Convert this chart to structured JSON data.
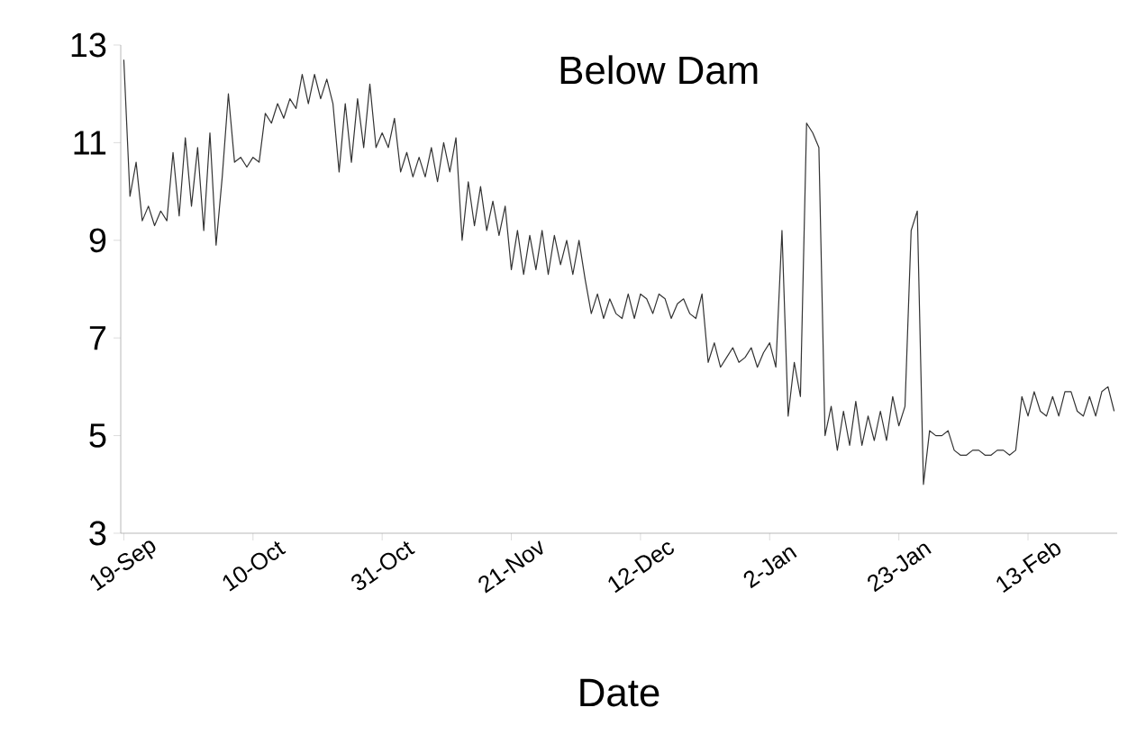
{
  "chart_data": {
    "type": "line",
    "title": "Below Dam",
    "xlabel": "Date",
    "color": "#333333",
    "marker": "none",
    "line_style": "solid",
    "categories": [
      "19-Sep",
      null,
      null,
      null,
      null,
      null,
      null,
      null,
      null,
      null,
      null,
      null,
      null,
      null,
      null,
      null,
      null,
      null,
      null,
      null,
      null,
      "10-Oct",
      null,
      null,
      null,
      null,
      null,
      null,
      null,
      null,
      null,
      null,
      null,
      null,
      null,
      null,
      null,
      null,
      null,
      null,
      null,
      null,
      "31-Oct",
      null,
      null,
      null,
      null,
      null,
      null,
      null,
      null,
      null,
      null,
      null,
      null,
      null,
      null,
      null,
      null,
      null,
      null,
      null,
      null,
      "21-Nov",
      null,
      null,
      null,
      null,
      null,
      null,
      null,
      null,
      null,
      null,
      null,
      null,
      null,
      null,
      null,
      null,
      null,
      null,
      null,
      null,
      "12-Dec",
      null,
      null,
      null,
      null,
      null,
      null,
      null,
      null,
      null,
      null,
      null,
      null,
      null,
      null,
      null,
      null,
      null,
      null,
      null,
      null,
      "2-Jan",
      null,
      null,
      null,
      null,
      null,
      null,
      null,
      null,
      null,
      null,
      null,
      null,
      null,
      null,
      null,
      null,
      null,
      null,
      null,
      null,
      "23-Jan",
      null,
      null,
      null,
      null,
      null,
      null,
      null,
      null,
      null,
      null,
      null,
      null,
      null,
      null,
      null,
      null,
      null,
      null,
      null,
      null,
      "13-Feb",
      null,
      null,
      null,
      null,
      null,
      null,
      null,
      null,
      null,
      null,
      null,
      null,
      null,
      null
    ],
    "values": [
      12.7,
      9.9,
      10.6,
      9.4,
      9.7,
      9.3,
      9.6,
      9.4,
      10.8,
      9.5,
      11.1,
      9.7,
      10.9,
      9.2,
      11.2,
      8.9,
      10.3,
      12.0,
      10.6,
      10.7,
      10.5,
      10.7,
      10.6,
      11.6,
      11.4,
      11.8,
      11.5,
      11.9,
      11.7,
      12.4,
      11.8,
      12.4,
      11.9,
      12.3,
      11.8,
      10.4,
      11.8,
      10.6,
      11.9,
      10.9,
      12.2,
      10.9,
      11.2,
      10.9,
      11.5,
      10.4,
      10.8,
      10.3,
      10.7,
      10.3,
      10.9,
      10.2,
      11.0,
      10.4,
      11.1,
      9.0,
      10.2,
      9.3,
      10.1,
      9.2,
      9.8,
      9.1,
      9.7,
      8.4,
      9.2,
      8.3,
      9.1,
      8.4,
      9.2,
      8.3,
      9.1,
      8.5,
      9.0,
      8.3,
      9.0,
      8.2,
      7.5,
      7.9,
      7.4,
      7.8,
      7.5,
      7.4,
      7.9,
      7.4,
      7.9,
      7.8,
      7.5,
      7.9,
      7.8,
      7.4,
      7.7,
      7.8,
      7.5,
      7.4,
      7.9,
      6.5,
      6.9,
      6.4,
      6.6,
      6.8,
      6.5,
      6.6,
      6.8,
      6.4,
      6.7,
      6.9,
      6.4,
      9.2,
      5.4,
      6.5,
      5.8,
      11.4,
      11.2,
      10.9,
      5.0,
      5.6,
      4.7,
      5.5,
      4.8,
      5.7,
      4.8,
      5.4,
      4.9,
      5.5,
      4.9,
      5.8,
      5.2,
      5.6,
      9.2,
      9.6,
      4.0,
      5.1,
      5.0,
      5.0,
      5.1,
      4.7,
      4.6,
      4.6,
      4.7,
      4.7,
      4.6,
      4.6,
      4.7,
      4.7,
      4.6,
      4.7,
      5.8,
      5.4,
      5.9,
      5.5,
      5.4,
      5.8,
      5.4,
      5.9,
      5.9,
      5.5,
      5.4,
      5.8,
      5.4,
      5.9,
      6.0,
      5.5
    ],
    "ylim": [
      3,
      13
    ],
    "yticks": [
      3,
      5,
      7,
      9,
      11,
      13
    ]
  }
}
